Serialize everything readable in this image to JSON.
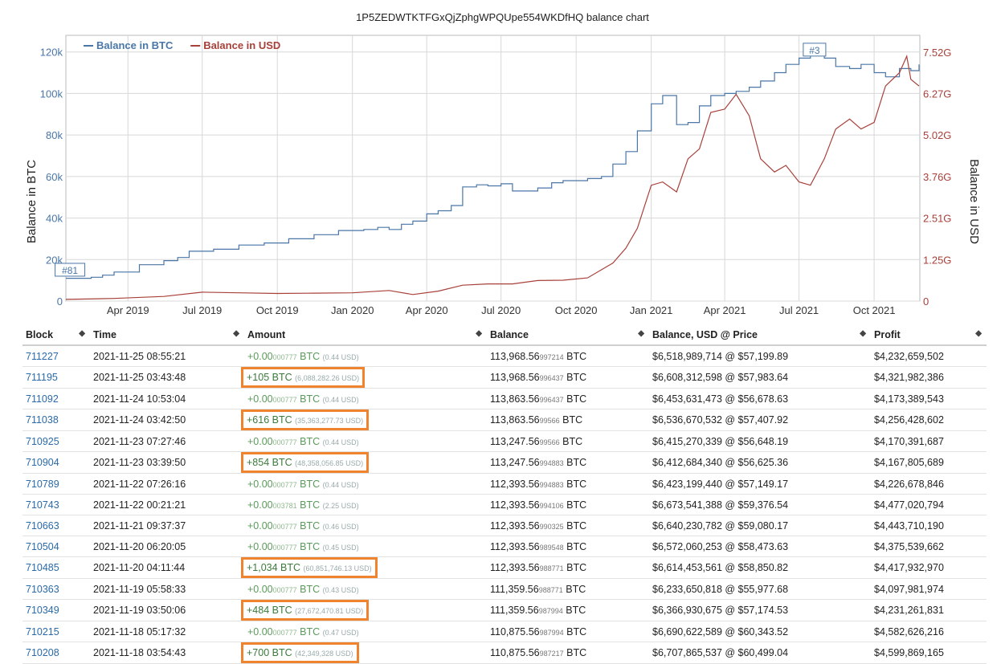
{
  "title": "1P5ZEDWTKTFGxQjZphgWPQUpe554WKDfHQ balance chart",
  "colors": {
    "btc": "#4a76a8",
    "usd": "#a8403a",
    "highlight": "#f0842e",
    "grid": "#d8d8d8"
  },
  "chart_data": {
    "type": "line",
    "title": "1P5ZEDWTKTFGxQjZphgWPQUpe554WKDfHQ balance chart",
    "ylabel": "Balance in BTC",
    "y2label": "Balance in USD",
    "legend": [
      "Balance in BTC",
      "Balance in USD"
    ],
    "legend_position": "top-left",
    "grid": true,
    "xlim": [
      "2019-01-15",
      "2021-11-26"
    ],
    "ylim": [
      0,
      128000
    ],
    "y2lim": [
      0,
      8030000000
    ],
    "x_ticks": [
      {
        "date": "2019-04-01",
        "label": "Apr 2019"
      },
      {
        "date": "2019-07-01",
        "label": "Jul 2019"
      },
      {
        "date": "2019-10-01",
        "label": "Oct 2019"
      },
      {
        "date": "2020-01-01",
        "label": "Jan 2020"
      },
      {
        "date": "2020-04-01",
        "label": "Apr 2020"
      },
      {
        "date": "2020-07-01",
        "label": "Jul 2020"
      },
      {
        "date": "2020-10-01",
        "label": "Oct 2020"
      },
      {
        "date": "2021-01-01",
        "label": "Jan 2021"
      },
      {
        "date": "2021-04-01",
        "label": "Apr 2021"
      },
      {
        "date": "2021-07-01",
        "label": "Jul 2021"
      },
      {
        "date": "2021-10-01",
        "label": "Oct 2021"
      }
    ],
    "y_ticks": [
      {
        "value": 0,
        "label": "0"
      },
      {
        "value": 20000,
        "label": "20k"
      },
      {
        "value": 40000,
        "label": "40k"
      },
      {
        "value": 60000,
        "label": "60k"
      },
      {
        "value": 80000,
        "label": "80k"
      },
      {
        "value": 100000,
        "label": "100k"
      },
      {
        "value": 120000,
        "label": "120k"
      }
    ],
    "y2_ticks": [
      {
        "value": 0,
        "label": "0"
      },
      {
        "value": 1250000000,
        "label": "1.25G"
      },
      {
        "value": 2510000000,
        "label": "2.51G"
      },
      {
        "value": 3760000000,
        "label": "3.76G"
      },
      {
        "value": 5020000000,
        "label": "5.02G"
      },
      {
        "value": 6270000000,
        "label": "6.27G"
      },
      {
        "value": 7520000000,
        "label": "7.52G"
      }
    ],
    "annotations": [
      {
        "label": "#81",
        "date": "2019-01-20",
        "value": 12000
      },
      {
        "label": "#3",
        "date": "2021-07-20",
        "value": 118000
      }
    ],
    "series": [
      {
        "name": "Balance in BTC",
        "axis": "left",
        "points": [
          [
            "2019-01-15",
            11000
          ],
          [
            "2019-02-15",
            11500
          ],
          [
            "2019-03-01",
            12500
          ],
          [
            "2019-03-15",
            14000
          ],
          [
            "2019-04-15",
            17500
          ],
          [
            "2019-05-15",
            19500
          ],
          [
            "2019-06-01",
            21000
          ],
          [
            "2019-06-15",
            24000
          ],
          [
            "2019-07-15",
            25000
          ],
          [
            "2019-08-15",
            27000
          ],
          [
            "2019-09-15",
            28000
          ],
          [
            "2019-10-15",
            30000
          ],
          [
            "2019-11-15",
            32000
          ],
          [
            "2019-12-15",
            34000
          ],
          [
            "2020-01-15",
            34500
          ],
          [
            "2020-02-01",
            35500
          ],
          [
            "2020-02-15",
            34500
          ],
          [
            "2020-03-01",
            37000
          ],
          [
            "2020-03-15",
            38500
          ],
          [
            "2020-04-01",
            42000
          ],
          [
            "2020-04-15",
            43500
          ],
          [
            "2020-05-01",
            46000
          ],
          [
            "2020-05-15",
            55000
          ],
          [
            "2020-06-01",
            56000
          ],
          [
            "2020-06-15",
            55500
          ],
          [
            "2020-07-01",
            56500
          ],
          [
            "2020-07-15",
            53000
          ],
          [
            "2020-08-15",
            54500
          ],
          [
            "2020-09-01",
            57000
          ],
          [
            "2020-09-15",
            58000
          ],
          [
            "2020-10-15",
            59000
          ],
          [
            "2020-11-01",
            60000
          ],
          [
            "2020-11-15",
            66000
          ],
          [
            "2020-12-01",
            72000
          ],
          [
            "2020-12-15",
            82000
          ],
          [
            "2021-01-01",
            95000
          ],
          [
            "2021-01-15",
            99000
          ],
          [
            "2021-02-01",
            85000
          ],
          [
            "2021-02-15",
            86000
          ],
          [
            "2021-03-01",
            94000
          ],
          [
            "2021-03-15",
            99000
          ],
          [
            "2021-04-01",
            100000
          ],
          [
            "2021-04-15",
            101000
          ],
          [
            "2021-05-01",
            103000
          ],
          [
            "2021-05-15",
            106000
          ],
          [
            "2021-06-01",
            110000
          ],
          [
            "2021-06-15",
            114000
          ],
          [
            "2021-07-01",
            117000
          ],
          [
            "2021-07-15",
            118500
          ],
          [
            "2021-08-01",
            117000
          ],
          [
            "2021-08-15",
            113000
          ],
          [
            "2021-09-01",
            112000
          ],
          [
            "2021-09-15",
            114000
          ],
          [
            "2021-10-01",
            110000
          ],
          [
            "2021-10-15",
            108000
          ],
          [
            "2021-11-01",
            112000
          ],
          [
            "2021-11-15",
            111000
          ],
          [
            "2021-11-25",
            114000
          ]
        ]
      },
      {
        "name": "Balance in USD",
        "axis": "right",
        "points": [
          [
            "2019-01-15",
            50000000
          ],
          [
            "2019-03-15",
            80000000
          ],
          [
            "2019-05-15",
            140000000
          ],
          [
            "2019-07-01",
            270000000
          ],
          [
            "2019-08-15",
            250000000
          ],
          [
            "2019-10-01",
            230000000
          ],
          [
            "2019-11-15",
            240000000
          ],
          [
            "2020-01-01",
            250000000
          ],
          [
            "2020-02-15",
            320000000
          ],
          [
            "2020-03-15",
            200000000
          ],
          [
            "2020-04-15",
            300000000
          ],
          [
            "2020-05-15",
            480000000
          ],
          [
            "2020-06-15",
            520000000
          ],
          [
            "2020-07-15",
            520000000
          ],
          [
            "2020-08-15",
            620000000
          ],
          [
            "2020-09-15",
            630000000
          ],
          [
            "2020-10-15",
            700000000
          ],
          [
            "2020-11-15",
            1150000000
          ],
          [
            "2020-12-01",
            1600000000
          ],
          [
            "2020-12-15",
            2200000000
          ],
          [
            "2021-01-01",
            3500000000
          ],
          [
            "2021-01-15",
            3600000000
          ],
          [
            "2021-02-01",
            3300000000
          ],
          [
            "2021-02-15",
            4300000000
          ],
          [
            "2021-03-01",
            4600000000
          ],
          [
            "2021-03-15",
            5700000000
          ],
          [
            "2021-04-01",
            5800000000
          ],
          [
            "2021-04-15",
            6250000000
          ],
          [
            "2021-05-01",
            5600000000
          ],
          [
            "2021-05-15",
            4300000000
          ],
          [
            "2021-06-01",
            3900000000
          ],
          [
            "2021-06-15",
            4100000000
          ],
          [
            "2021-07-01",
            3600000000
          ],
          [
            "2021-07-15",
            3500000000
          ],
          [
            "2021-08-01",
            4300000000
          ],
          [
            "2021-08-15",
            5200000000
          ],
          [
            "2021-09-01",
            5500000000
          ],
          [
            "2021-09-15",
            5200000000
          ],
          [
            "2021-10-01",
            5400000000
          ],
          [
            "2021-10-15",
            6500000000
          ],
          [
            "2021-11-01",
            6900000000
          ],
          [
            "2021-11-10",
            7400000000
          ],
          [
            "2021-11-15",
            6700000000
          ],
          [
            "2021-11-25",
            6500000000
          ]
        ]
      }
    ]
  },
  "table": {
    "columns": [
      "Block",
      "Time",
      "Amount",
      "Balance",
      "Balance, USD @ Price",
      "Profit"
    ],
    "rows": [
      {
        "block": "711227",
        "time": "2021-11-25 08:55:21",
        "amount": "+0.00",
        "amount_small": "000777",
        "amount_unit": " BTC",
        "amount_usd": "(0.44 USD)",
        "highlight": false,
        "balance": "113,968.56",
        "balance_small": "997214",
        "balance_unit": " BTC",
        "usd_price": "$6,518,989,714 @ $57,199.89",
        "profit": "$4,232,659,502"
      },
      {
        "block": "711195",
        "time": "2021-11-25 03:43:48",
        "amount": "+105 BTC",
        "amount_small": "",
        "amount_unit": "",
        "amount_usd": "(6,088,282.26 USD)",
        "highlight": true,
        "balance": "113,968.56",
        "balance_small": "996437",
        "balance_unit": " BTC",
        "usd_price": "$6,608,312,598 @ $57,983.64",
        "profit": "$4,321,982,386"
      },
      {
        "block": "711092",
        "time": "2021-11-24 10:53:04",
        "amount": "+0.00",
        "amount_small": "000777",
        "amount_unit": " BTC",
        "amount_usd": "(0.44 USD)",
        "highlight": false,
        "balance": "113,863.56",
        "balance_small": "996437",
        "balance_unit": " BTC",
        "usd_price": "$6,453,631,473 @ $56,678.63",
        "profit": "$4,173,389,543"
      },
      {
        "block": "711038",
        "time": "2021-11-24 03:42:50",
        "amount": "+616 BTC",
        "amount_small": "",
        "amount_unit": "",
        "amount_usd": "(35,363,277.73 USD)",
        "highlight": true,
        "balance": "113,863.56",
        "balance_small": "99566",
        "balance_unit": " BTC",
        "usd_price": "$6,536,670,532 @ $57,407.92",
        "profit": "$4,256,428,602"
      },
      {
        "block": "710925",
        "time": "2021-11-23 07:27:46",
        "amount": "+0.00",
        "amount_small": "000777",
        "amount_unit": " BTC",
        "amount_usd": "(0.44 USD)",
        "highlight": false,
        "balance": "113,247.56",
        "balance_small": "99566",
        "balance_unit": " BTC",
        "usd_price": "$6,415,270,339 @ $56,648.19",
        "profit": "$4,170,391,687"
      },
      {
        "block": "710904",
        "time": "2021-11-23 03:39:50",
        "amount": "+854 BTC",
        "amount_small": "",
        "amount_unit": "",
        "amount_usd": "(48,358,056.85 USD)",
        "highlight": true,
        "balance": "113,247.56",
        "balance_small": "994883",
        "balance_unit": " BTC",
        "usd_price": "$6,412,684,340 @ $56,625.36",
        "profit": "$4,167,805,689"
      },
      {
        "block": "710789",
        "time": "2021-11-22 07:26:16",
        "amount": "+0.00",
        "amount_small": "000777",
        "amount_unit": " BTC",
        "amount_usd": "(0.44 USD)",
        "highlight": false,
        "balance": "112,393.56",
        "balance_small": "994883",
        "balance_unit": " BTC",
        "usd_price": "$6,423,199,440 @ $57,149.17",
        "profit": "$4,226,678,846"
      },
      {
        "block": "710743",
        "time": "2021-11-22 00:21:21",
        "amount": "+0.00",
        "amount_small": "003781",
        "amount_unit": " BTC",
        "amount_usd": "(2.25 USD)",
        "highlight": false,
        "balance": "112,393.56",
        "balance_small": "994106",
        "balance_unit": " BTC",
        "usd_price": "$6,673,541,388 @ $59,376.54",
        "profit": "$4,477,020,794"
      },
      {
        "block": "710663",
        "time": "2021-11-21 09:37:37",
        "amount": "+0.00",
        "amount_small": "000777",
        "amount_unit": " BTC",
        "amount_usd": "(0.46 USD)",
        "highlight": false,
        "balance": "112,393.56",
        "balance_small": "990325",
        "balance_unit": " BTC",
        "usd_price": "$6,640,230,782 @ $59,080.17",
        "profit": "$4,443,710,190"
      },
      {
        "block": "710504",
        "time": "2021-11-20 06:20:05",
        "amount": "+0.00",
        "amount_small": "000777",
        "amount_unit": " BTC",
        "amount_usd": "(0.45 USD)",
        "highlight": false,
        "balance": "112,393.56",
        "balance_small": "989548",
        "balance_unit": " BTC",
        "usd_price": "$6,572,060,253 @ $58,473.63",
        "profit": "$4,375,539,662"
      },
      {
        "block": "710485",
        "time": "2021-11-20 04:11:44",
        "amount": "+1,034 BTC",
        "amount_small": "",
        "amount_unit": "",
        "amount_usd": "(60,851,746.13 USD)",
        "highlight": true,
        "balance": "112,393.56",
        "balance_small": "988771",
        "balance_unit": " BTC",
        "usd_price": "$6,614,453,561 @ $58,850.82",
        "profit": "$4,417,932,970"
      },
      {
        "block": "710363",
        "time": "2021-11-19 05:58:33",
        "amount": "+0.00",
        "amount_small": "000777",
        "amount_unit": " BTC",
        "amount_usd": "(0.43 USD)",
        "highlight": false,
        "balance": "111,359.56",
        "balance_small": "988771",
        "balance_unit": " BTC",
        "usd_price": "$6,233,650,818 @ $55,977.68",
        "profit": "$4,097,981,974"
      },
      {
        "block": "710349",
        "time": "2021-11-19 03:50:06",
        "amount": "+484 BTC",
        "amount_small": "",
        "amount_unit": "",
        "amount_usd": "(27,672,470.81 USD)",
        "highlight": true,
        "balance": "111,359.56",
        "balance_small": "987994",
        "balance_unit": " BTC",
        "usd_price": "$6,366,930,675 @ $57,174.53",
        "profit": "$4,231,261,831"
      },
      {
        "block": "710215",
        "time": "2021-11-18 05:17:32",
        "amount": "+0.00",
        "amount_small": "000777",
        "amount_unit": " BTC",
        "amount_usd": "(0.47 USD)",
        "highlight": false,
        "balance": "110,875.56",
        "balance_small": "987994",
        "balance_unit": " BTC",
        "usd_price": "$6,690,622,589 @ $60,343.52",
        "profit": "$4,582,626,216"
      },
      {
        "block": "710208",
        "time": "2021-11-18 03:54:43",
        "amount": "+700 BTC",
        "amount_small": "",
        "amount_unit": "",
        "amount_usd": "(42,349,328 USD)",
        "highlight": true,
        "balance": "110,875.56",
        "balance_small": "987217",
        "balance_unit": " BTC",
        "usd_price": "$6,707,865,537 @ $60,499.04",
        "profit": "$4,599,869,165"
      }
    ]
  }
}
